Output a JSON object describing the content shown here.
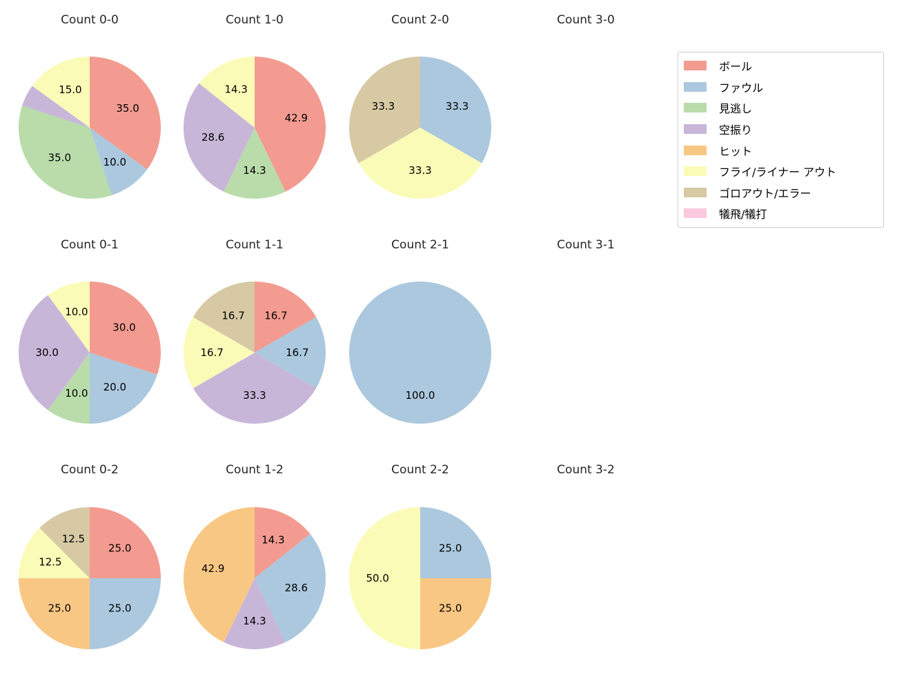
{
  "figure": {
    "background": "#ffffff"
  },
  "legend": {
    "items": [
      {
        "label": "ボール",
        "color": "#f39b90"
      },
      {
        "label": "ファウル",
        "color": "#abc8de"
      },
      {
        "label": "見逃し",
        "color": "#b9dcaa"
      },
      {
        "label": "空振り",
        "color": "#c8b6d9"
      },
      {
        "label": "ヒット",
        "color": "#f9c784"
      },
      {
        "label": "フライ/ライナー アウト",
        "color": "#fbfbb8"
      },
      {
        "label": "ゴロアウト/エラー",
        "color": "#d6c9a4"
      },
      {
        "label": "犠飛/犠打",
        "color": "#fbc9de"
      }
    ]
  },
  "chart_data": [
    {
      "type": "pie",
      "title": "Count 0-0",
      "start_angle": 90,
      "direction": "clockwise",
      "slices": [
        {
          "label": "ボール",
          "value": 35.0,
          "text": "35.0"
        },
        {
          "label": "ファウル",
          "value": 10.0,
          "text": "10.0"
        },
        {
          "label": "見逃し",
          "value": 35.0,
          "text": "35.0"
        },
        {
          "label": "空振り",
          "value": 5.0,
          "text": ""
        },
        {
          "label": "フライ/ライナー アウト",
          "value": 15.0,
          "text": "15.0"
        }
      ]
    },
    {
      "type": "pie",
      "title": "Count 1-0",
      "start_angle": 90,
      "direction": "clockwise",
      "slices": [
        {
          "label": "ボール",
          "value": 42.9,
          "text": "42.9"
        },
        {
          "label": "見逃し",
          "value": 14.3,
          "text": "14.3"
        },
        {
          "label": "空振り",
          "value": 28.6,
          "text": "28.6"
        },
        {
          "label": "フライ/ライナー アウト",
          "value": 14.3,
          "text": "14.3"
        }
      ]
    },
    {
      "type": "pie",
      "title": "Count 2-0",
      "start_angle": 90,
      "direction": "clockwise",
      "slices": [
        {
          "label": "ファウル",
          "value": 33.3,
          "text": "33.3"
        },
        {
          "label": "フライ/ライナー アウト",
          "value": 33.3,
          "text": "33.3"
        },
        {
          "label": "ゴロアウト/エラー",
          "value": 33.3,
          "text": "33.3"
        }
      ]
    },
    {
      "type": "pie",
      "title": "Count 3-0",
      "start_angle": 90,
      "direction": "clockwise",
      "slices": []
    },
    {
      "type": "pie",
      "title": "Count 0-1",
      "start_angle": 90,
      "direction": "clockwise",
      "slices": [
        {
          "label": "ボール",
          "value": 30.0,
          "text": "30.0"
        },
        {
          "label": "ファウル",
          "value": 20.0,
          "text": "20.0"
        },
        {
          "label": "見逃し",
          "value": 10.0,
          "text": "10.0"
        },
        {
          "label": "空振り",
          "value": 30.0,
          "text": "30.0"
        },
        {
          "label": "フライ/ライナー アウト",
          "value": 10.0,
          "text": "10.0"
        }
      ]
    },
    {
      "type": "pie",
      "title": "Count 1-1",
      "start_angle": 90,
      "direction": "clockwise",
      "slices": [
        {
          "label": "ボール",
          "value": 16.7,
          "text": "16.7"
        },
        {
          "label": "ファウル",
          "value": 16.7,
          "text": "16.7"
        },
        {
          "label": "空振り",
          "value": 33.3,
          "text": "33.3"
        },
        {
          "label": "フライ/ライナー アウト",
          "value": 16.7,
          "text": "16.7"
        },
        {
          "label": "ゴロアウト/エラー",
          "value": 16.7,
          "text": "16.7"
        }
      ]
    },
    {
      "type": "pie",
      "title": "Count 2-1",
      "start_angle": 90,
      "direction": "clockwise",
      "slices": [
        {
          "label": "ファウル",
          "value": 100.0,
          "text": "100.0"
        }
      ]
    },
    {
      "type": "pie",
      "title": "Count 3-1",
      "start_angle": 90,
      "direction": "clockwise",
      "slices": []
    },
    {
      "type": "pie",
      "title": "Count 0-2",
      "start_angle": 90,
      "direction": "clockwise",
      "slices": [
        {
          "label": "ボール",
          "value": 25.0,
          "text": "25.0"
        },
        {
          "label": "ファウル",
          "value": 25.0,
          "text": "25.0"
        },
        {
          "label": "ヒット",
          "value": 25.0,
          "text": "25.0"
        },
        {
          "label": "フライ/ライナー アウト",
          "value": 12.5,
          "text": "12.5"
        },
        {
          "label": "ゴロアウト/エラー",
          "value": 12.5,
          "text": "12.5"
        }
      ]
    },
    {
      "type": "pie",
      "title": "Count 1-2",
      "start_angle": 90,
      "direction": "clockwise",
      "slices": [
        {
          "label": "ボール",
          "value": 14.3,
          "text": "14.3"
        },
        {
          "label": "ファウル",
          "value": 28.6,
          "text": "28.6"
        },
        {
          "label": "空振り",
          "value": 14.3,
          "text": "14.3"
        },
        {
          "label": "ヒット",
          "value": 42.9,
          "text": "42.9"
        }
      ]
    },
    {
      "type": "pie",
      "title": "Count 2-2",
      "start_angle": 90,
      "direction": "clockwise",
      "slices": [
        {
          "label": "ファウル",
          "value": 25.0,
          "text": "25.0"
        },
        {
          "label": "ヒット",
          "value": 25.0,
          "text": "25.0"
        },
        {
          "label": "フライ/ライナー アウト",
          "value": 50.0,
          "text": "50.0"
        }
      ]
    },
    {
      "type": "pie",
      "title": "Count 3-2",
      "start_angle": 90,
      "direction": "clockwise",
      "slices": []
    }
  ]
}
